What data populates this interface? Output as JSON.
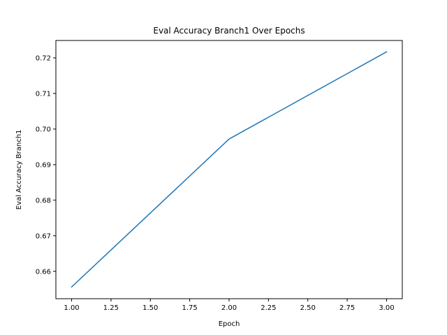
{
  "chart_data": {
    "type": "line",
    "title": "Eval Accuracy Branch1 Over Epochs",
    "xlabel": "Epoch",
    "ylabel": "Eval Accuracy Branch1",
    "xlim": [
      0.9,
      3.1
    ],
    "ylim": [
      0.6523,
      0.7249
    ],
    "xticks": [
      1.0,
      1.25,
      1.5,
      1.75,
      2.0,
      2.25,
      2.5,
      2.75,
      3.0
    ],
    "xtick_labels": [
      "1.00",
      "1.25",
      "1.50",
      "1.75",
      "2.00",
      "2.25",
      "2.50",
      "2.75",
      "3.00"
    ],
    "yticks": [
      0.66,
      0.67,
      0.68,
      0.69,
      0.7,
      0.71,
      0.72
    ],
    "ytick_labels": [
      "0.66",
      "0.67",
      "0.68",
      "0.69",
      "0.70",
      "0.71",
      "0.72"
    ],
    "grid": false,
    "legend": false,
    "series": [
      {
        "color": "#1f77b4",
        "x": [
          1.0,
          2.0,
          3.0
        ],
        "y": [
          0.6556,
          0.6972,
          0.7217
        ]
      }
    ]
  }
}
